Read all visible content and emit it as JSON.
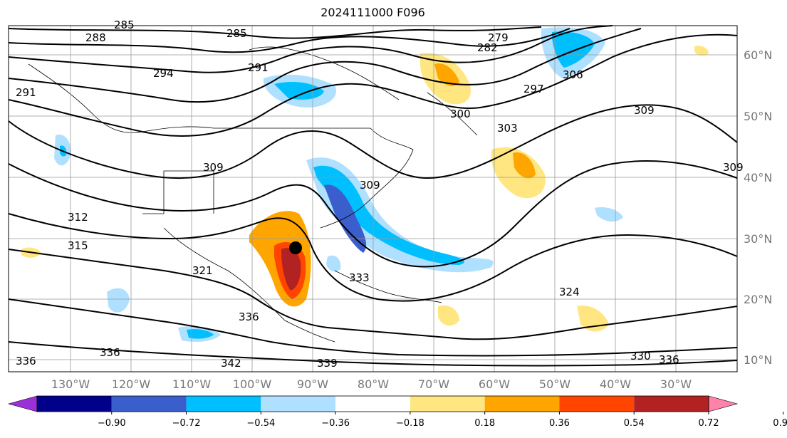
{
  "title": "2024111000 F096",
  "lat_labels": [
    "60°N",
    "50°N",
    "40°N",
    "30°N",
    "20°N",
    "10°N"
  ],
  "lon_labels": [
    "130°W",
    "120°W",
    "110°W",
    "100°W",
    "90°W",
    "80°W",
    "70°W",
    "60°W",
    "50°W",
    "40°W",
    "30°W"
  ],
  "contour_labels": [
    "285",
    "288",
    "285",
    "279",
    "282",
    "291",
    "294",
    "291",
    "297",
    "306",
    "309",
    "309",
    "309",
    "312",
    "315",
    "309",
    "321",
    "324",
    "333",
    "336",
    "330",
    "336",
    "336",
    "342",
    "339",
    "336",
    "300",
    "303"
  ],
  "colorbar": {
    "ticks": [
      "−0.90",
      "−0.72",
      "−0.54",
      "−0.36",
      "−0.18",
      "0.18",
      "0.36",
      "0.54",
      "0.72",
      "0.90"
    ],
    "colors": [
      "#9b30d9",
      "#00008b",
      "#3a5fcd",
      "#00bfff",
      "#b0e0ff",
      "#ffffff",
      "#ffe680",
      "#ffa500",
      "#ff4500",
      "#b22222",
      "#ff82ab"
    ]
  },
  "marker": "storm-center"
}
